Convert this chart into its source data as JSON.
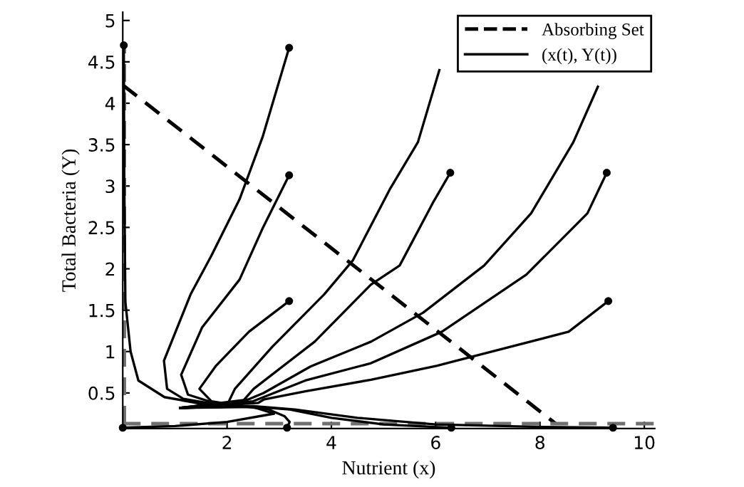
{
  "chart_data": {
    "type": "line",
    "xlabel": "Nutrient (x)",
    "ylabel": "Total Bacteria (Y)",
    "xlim": [
      0,
      10.2
    ],
    "ylim": [
      0.07,
      5.1
    ],
    "xticks": [
      2,
      4,
      6,
      8,
      10
    ],
    "yticks": [
      0.5,
      1,
      1.5,
      2,
      2.5,
      3,
      3.5,
      4,
      4.5,
      5
    ],
    "grid": false,
    "legend": "top right",
    "series": [
      {
        "name": "Absorbing Set",
        "color": "#000000",
        "line_style": "dashed",
        "marker": "none",
        "x": [
          0,
          8.3
        ],
        "values": [
          4.22,
          0.13
        ]
      },
      {
        "color": "#707070",
        "line_style": "dashed",
        "marker": "none",
        "x": [
          0.03,
          0.03
        ],
        "values": [
          0.13,
          4.7
        ]
      },
      {
        "color": "#707070",
        "line_style": "dashed",
        "marker": "none",
        "x": [
          0,
          10.2
        ],
        "values": [
          0.13,
          0.13
        ]
      },
      {
        "name": "(x(t), Y(t))",
        "color": "#000000",
        "line_style": "solid",
        "x": [
          3.19,
          2.68,
          2.24,
          1.7,
          1.3,
          0.79,
          0.85,
          1.16,
          1.8,
          2.2,
          1.1
        ],
        "values": [
          4.67,
          3.59,
          2.84,
          2.16,
          1.69,
          0.89,
          0.55,
          0.43,
          0.36,
          0.35,
          0.32
        ]
      },
      {
        "color": "#000000",
        "line_style": "solid",
        "x": [
          3.19,
          2.69,
          2.24,
          1.52,
          1.12,
          1.25,
          1.8,
          2.2,
          1.1
        ],
        "values": [
          3.13,
          2.5,
          1.87,
          1.29,
          0.72,
          0.48,
          0.37,
          0.35,
          0.32
        ]
      },
      {
        "color": "#000000",
        "line_style": "solid",
        "x": [
          3.19,
          2.42,
          1.79,
          1.47,
          1.7,
          2.2,
          1.1
        ],
        "values": [
          1.61,
          1.24,
          0.83,
          0.55,
          0.4,
          0.35,
          0.32
        ]
      },
      {
        "color": "#000000",
        "line_style": "solid",
        "x": [
          6.07,
          5.66,
          5.12,
          4.41,
          3.86,
          2.87,
          2.15,
          2.02,
          2.2,
          1.1
        ],
        "values": [
          4.4,
          3.53,
          2.96,
          2.1,
          1.69,
          1.06,
          0.55,
          0.38,
          0.35,
          0.32
        ]
      },
      {
        "color": "#000000",
        "line_style": "solid",
        "x": [
          6.28,
          5.94,
          5.31,
          4.76,
          3.68,
          2.51,
          2.3,
          1.1
        ],
        "values": [
          3.16,
          2.79,
          2.04,
          1.81,
          1.12,
          0.55,
          0.4,
          0.32
        ]
      },
      {
        "color": "#000000",
        "line_style": "solid",
        "x": [
          9.11,
          8.64,
          7.83,
          6.93,
          5.76,
          4.76,
          3.6,
          2.7,
          2.4,
          1.1
        ],
        "values": [
          4.2,
          3.53,
          2.67,
          2.04,
          1.47,
          1.12,
          0.82,
          0.5,
          0.42,
          0.32
        ]
      },
      {
        "color": "#000000",
        "line_style": "solid",
        "x": [
          9.28,
          8.91,
          7.74,
          6.12,
          4.76,
          3.5,
          2.7,
          2.5,
          1.1
        ],
        "values": [
          3.16,
          2.67,
          1.93,
          1.24,
          0.86,
          0.65,
          0.45,
          0.4,
          0.32
        ]
      },
      {
        "color": "#000000",
        "line_style": "solid",
        "x": [
          9.31,
          8.55,
          6.03,
          4.76,
          3.5,
          2.7,
          2.6,
          1.1
        ],
        "values": [
          1.61,
          1.24,
          0.83,
          0.66,
          0.52,
          0.42,
          0.38,
          0.32
        ]
      },
      {
        "color": "#000000",
        "line_style": "solid",
        "x": [
          9.4,
          8,
          6,
          4.5,
          3.3,
          2.5,
          1.1
        ],
        "values": [
          0.08,
          0.09,
          0.12,
          0.2,
          0.3,
          0.34,
          0.32
        ]
      },
      {
        "color": "#000000",
        "line_style": "solid",
        "x": [
          6.3,
          5,
          4,
          3.2,
          2.4,
          1.1
        ],
        "values": [
          0.08,
          0.12,
          0.2,
          0.3,
          0.34,
          0.32
        ]
      },
      {
        "color": "#000000",
        "line_style": "solid",
        "x": [
          3.15,
          3.2,
          3.1,
          2.8,
          2.3,
          1.1
        ],
        "values": [
          0.08,
          0.15,
          0.22,
          0.3,
          0.34,
          0.32
        ]
      },
      {
        "color": "#000000",
        "line_style": "solid",
        "x": [
          0.0,
          1,
          2,
          2.9,
          2.5,
          1.1
        ],
        "values": [
          0.08,
          0.1,
          0.15,
          0.25,
          0.33,
          0.32
        ]
      },
      {
        "type": "scatter",
        "color": "#000000",
        "marker": "circle",
        "x": [
          3.19,
          3.19,
          3.19,
          6.28,
          9.28,
          9.31,
          9.4,
          6.3,
          3.15,
          0.0,
          0.02
        ],
        "values": [
          4.67,
          3.13,
          1.61,
          3.16,
          3.16,
          1.61,
          0.08,
          0.08,
          0.08,
          0.08,
          4.7
        ]
      },
      {
        "color": "#000000",
        "line_style": "solid",
        "x": [
          0.02,
          0.03,
          0.05,
          0.15,
          0.3,
          0.8,
          1.5,
          2.2,
          1.1
        ],
        "values": [
          4.7,
          3.0,
          1.6,
          1.0,
          0.65,
          0.45,
          0.37,
          0.35,
          0.32
        ]
      }
    ]
  }
}
